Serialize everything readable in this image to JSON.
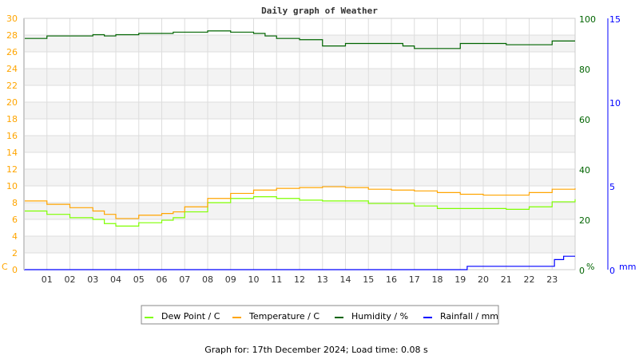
{
  "chart_data": {
    "type": "line",
    "title": "Daily graph of Weather",
    "footer": "Graph for: 17th December 2024; Load time: 0.08 s",
    "x_ticks": [
      "01",
      "02",
      "03",
      "04",
      "05",
      "06",
      "07",
      "08",
      "09",
      "10",
      "11",
      "12",
      "13",
      "14",
      "15",
      "16",
      "17",
      "18",
      "19",
      "20",
      "21",
      "22",
      "23"
    ],
    "xlim": [
      0,
      24
    ],
    "axes": {
      "left": {
        "label": "C",
        "ylim": [
          0,
          30
        ],
        "ticks": [
          "0",
          "2",
          "4",
          "6",
          "8",
          "10",
          "12",
          "14",
          "16",
          "18",
          "20",
          "22",
          "24",
          "26",
          "28",
          "30"
        ],
        "color": "#ffa500"
      },
      "right": {
        "label": "%",
        "ylim": [
          0,
          100
        ],
        "ticks": [
          "0",
          "20",
          "40",
          "60",
          "80",
          "100"
        ],
        "color": "#006400"
      },
      "far_right": {
        "label": "mm",
        "ylim": [
          0,
          15
        ],
        "ticks": [
          "0",
          "5",
          "10",
          "15"
        ],
        "color": "#0000ff"
      }
    },
    "grid": true,
    "legend_placement": "bottom",
    "series": [
      {
        "name": "Dew Point / C",
        "axis": "left",
        "color": "#7fff00",
        "x": [
          0,
          1,
          2,
          3,
          3.5,
          4,
          5,
          6,
          6.5,
          7,
          8,
          9,
          10,
          11,
          12,
          13,
          14,
          15,
          16,
          17,
          18,
          19,
          20,
          21,
          22,
          23,
          24
        ],
        "values": [
          7.0,
          6.6,
          6.2,
          6.0,
          5.5,
          5.2,
          5.6,
          5.9,
          6.2,
          6.9,
          8.0,
          8.5,
          8.7,
          8.5,
          8.3,
          8.2,
          8.2,
          7.9,
          7.9,
          7.6,
          7.3,
          7.3,
          7.3,
          7.2,
          7.5,
          8.1,
          8.4
        ]
      },
      {
        "name": "Temperature / C",
        "axis": "left",
        "color": "#ffa500",
        "x": [
          0,
          1,
          2,
          3,
          3.5,
          4,
          5,
          6,
          6.5,
          7,
          8,
          9,
          10,
          11,
          12,
          13,
          14,
          15,
          16,
          17,
          18,
          19,
          20,
          21,
          22,
          23,
          24
        ],
        "values": [
          8.2,
          7.8,
          7.4,
          7.0,
          6.6,
          6.1,
          6.5,
          6.7,
          6.9,
          7.5,
          8.5,
          9.1,
          9.5,
          9.7,
          9.8,
          9.9,
          9.8,
          9.6,
          9.5,
          9.4,
          9.2,
          9.0,
          8.9,
          8.9,
          9.2,
          9.6,
          9.7
        ]
      },
      {
        "name": "Humidity / %",
        "axis": "right",
        "color": "#006400",
        "x": [
          0,
          1,
          2,
          3,
          3.5,
          4,
          5,
          6.5,
          7,
          8,
          9,
          10,
          10.5,
          11,
          12,
          13,
          14,
          15,
          16,
          16.5,
          17,
          18,
          19,
          20,
          21,
          22,
          23,
          24
        ],
        "values": [
          92,
          93,
          93,
          93.5,
          93,
          93.5,
          94,
          94.5,
          94.5,
          95,
          94.5,
          94,
          93,
          92,
          91.5,
          89,
          90,
          90,
          90,
          89,
          88,
          88,
          90,
          90,
          89.5,
          89.5,
          91,
          91
        ]
      },
      {
        "name": "Rainfall / mm",
        "axis": "far_right",
        "color": "#0000ff",
        "x": [
          0,
          19.3,
          23.1,
          23.5,
          24
        ],
        "values": [
          0,
          0.2,
          0.6,
          0.8,
          0.8
        ]
      }
    ]
  }
}
